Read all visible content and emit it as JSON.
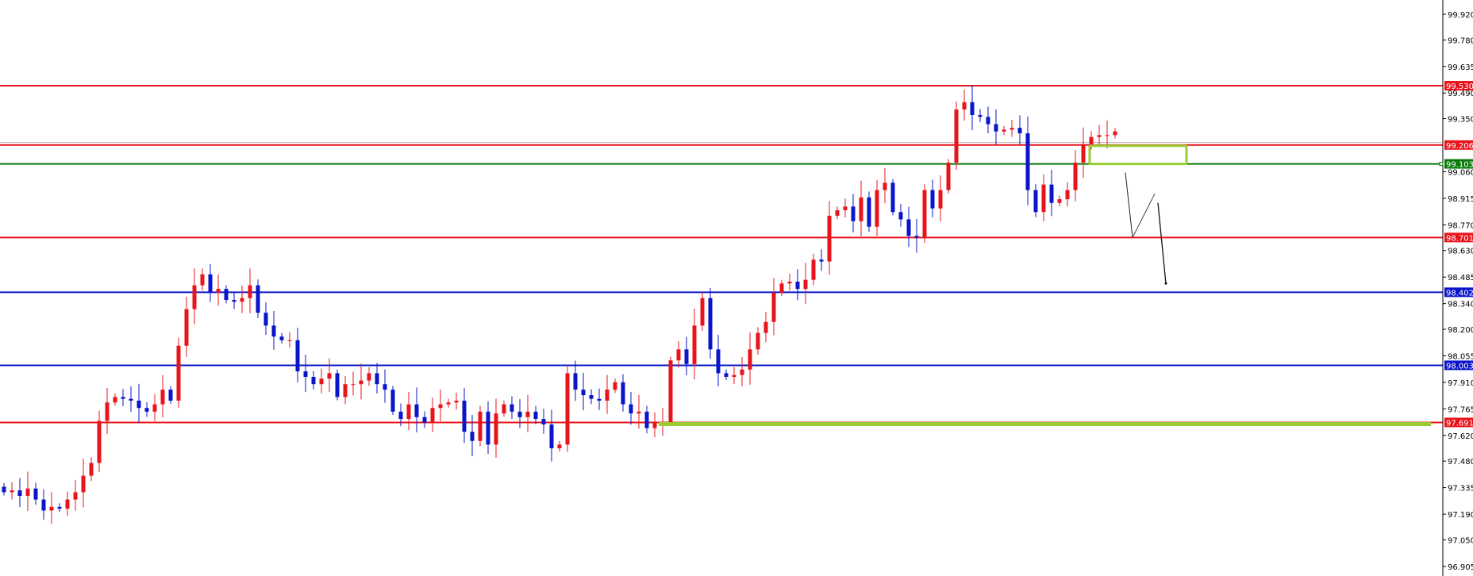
{
  "chart_data": {
    "type": "candlestick",
    "title": "",
    "ylim": [
      96.87,
      99.99
    ],
    "y_ticks": [
      "99.920",
      "99.780",
      "99.635",
      "99.490",
      "99.350",
      "99.060",
      "98.915",
      "98.770",
      "98.630",
      "98.485",
      "98.340",
      "98.200",
      "98.055",
      "97.910",
      "97.765",
      "97.620",
      "97.480",
      "97.335",
      "97.190",
      "97.050",
      "96.905"
    ],
    "grid": false,
    "colors": {
      "up": "#e8141b",
      "down": "#0a14c8",
      "zone": "#9acd32"
    },
    "closes": [
      97.31,
      97.32,
      97.29,
      97.33,
      97.27,
      97.21,
      97.23,
      97.22,
      97.27,
      97.31,
      97.4,
      97.47,
      97.7,
      97.8,
      97.83,
      97.82,
      97.81,
      97.77,
      97.75,
      97.79,
      97.87,
      97.81,
      98.11,
      98.31,
      98.44,
      98.5,
      98.4,
      98.42,
      98.36,
      98.35,
      98.37,
      98.44,
      98.29,
      98.22,
      98.16,
      98.14,
      98.14,
      97.97,
      97.94,
      97.9,
      97.93,
      97.96,
      97.83,
      97.9,
      97.9,
      97.92,
      97.96,
      97.9,
      97.87,
      97.75,
      97.71,
      97.79,
      97.72,
      97.69,
      97.77,
      97.79,
      97.8,
      97.81,
      97.64,
      97.59,
      97.75,
      97.57,
      97.74,
      97.79,
      97.75,
      97.72,
      97.75,
      97.71,
      97.68,
      97.55,
      97.57,
      97.96,
      97.87,
      97.84,
      97.82,
      97.81,
      97.87,
      97.91,
      97.79,
      97.74,
      97.75,
      97.66,
      97.69,
      97.69,
      98.03,
      98.09,
      98.01,
      98.22,
      98.37,
      98.09,
      97.96,
      97.94,
      97.95,
      97.98,
      98.09,
      98.18,
      98.24,
      98.4,
      98.45,
      98.46,
      98.42,
      98.47,
      98.58,
      98.57,
      98.82,
      98.85,
      98.87,
      98.79,
      98.92,
      98.76,
      98.96,
      99.0,
      98.84,
      98.8,
      98.71,
      98.7,
      98.96,
      98.86,
      98.96,
      99.11,
      99.4,
      99.44,
      99.37,
      99.36,
      99.32,
      99.28,
      99.29,
      99.3,
      99.27,
      98.96,
      98.84,
      98.99,
      98.89,
      98.91,
      98.96,
      99.11,
      99.21,
      99.25,
      99.26,
      99.26,
      99.28
    ],
    "current_price": 99.22,
    "levels": [
      {
        "price": 99.53,
        "label": "99.530",
        "color": "#e8141b"
      },
      {
        "price": 99.206,
        "label": "99.206",
        "color": "#e8141b"
      },
      {
        "price": 99.103,
        "label": "99.103",
        "color": "#0a7a0a"
      },
      {
        "price": 98.701,
        "label": "98.701",
        "color": "#e8141b"
      },
      {
        "price": 98.402,
        "label": "98.402",
        "color": "#0a14c8"
      },
      {
        "price": 98.003,
        "label": "98.003",
        "color": "#0a14c8"
      },
      {
        "price": 97.691,
        "label": "97.691",
        "color": "#e8141b"
      }
    ],
    "zone": {
      "top": 99.206,
      "bottom": 99.103
    },
    "support_band_price": 97.691,
    "projection_prices": [
      99.09,
      98.701,
      98.94,
      98.89,
      98.45
    ]
  }
}
